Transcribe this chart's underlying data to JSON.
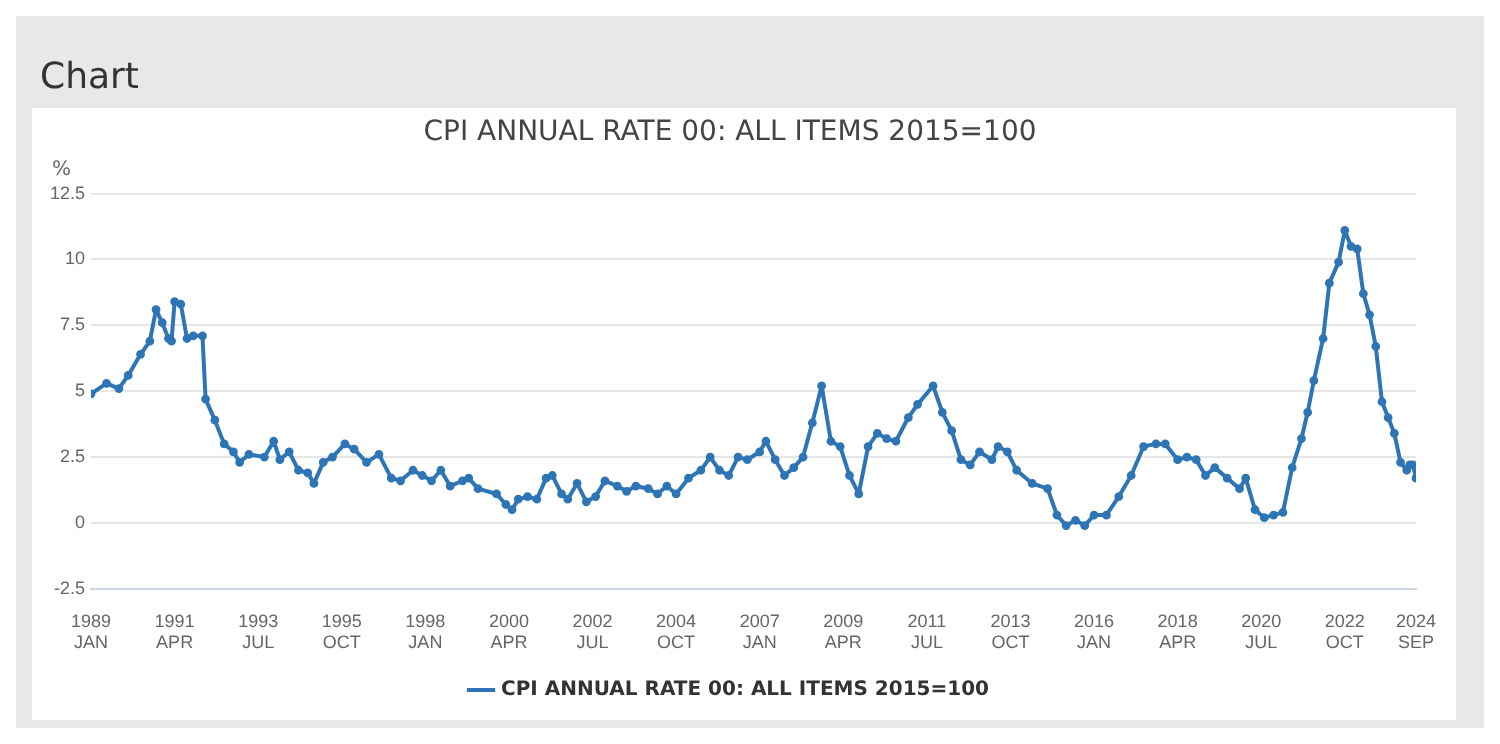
{
  "chart_data": {
    "type": "line",
    "title": "CPI ANNUAL RATE 00: ALL ITEMS 2015=100",
    "ylabel": "%",
    "annotations": [
      "Chart"
    ],
    "x": [
      "1989-01",
      "1989-06",
      "1989-10",
      "1990-01",
      "1990-05",
      "1990-08",
      "1990-10",
      "1990-12",
      "1991-02",
      "1991-03",
      "1991-04",
      "1991-06",
      "1991-08",
      "1991-10",
      "1992-01",
      "1992-02",
      "1992-05",
      "1992-08",
      "1992-11",
      "1993-01",
      "1993-04",
      "1993-09",
      "1993-12",
      "1994-02",
      "1994-05",
      "1994-08",
      "1994-11",
      "1995-01",
      "1995-04",
      "1995-07",
      "1995-11",
      "1996-02",
      "1996-06",
      "1996-10",
      "1997-02",
      "1997-05",
      "1997-09",
      "1997-12",
      "1998-03",
      "1998-06",
      "1998-09",
      "1999-01",
      "1999-03",
      "1999-06",
      "1999-12",
      "2000-03",
      "2000-05",
      "2000-07",
      "2000-10",
      "2001-01",
      "2001-04",
      "2001-06",
      "2001-09",
      "2001-11",
      "2002-02",
      "2002-05",
      "2002-08",
      "2002-11",
      "2003-03",
      "2003-06",
      "2003-09",
      "2004-01",
      "2004-04",
      "2004-07",
      "2004-10",
      "2005-02",
      "2005-06",
      "2005-09",
      "2005-12",
      "2006-03",
      "2006-06",
      "2006-09",
      "2007-01",
      "2007-03",
      "2007-06",
      "2007-09",
      "2007-12",
      "2008-03",
      "2008-06",
      "2008-09",
      "2008-12",
      "2009-03",
      "2009-06",
      "2009-09",
      "2009-12",
      "2010-03",
      "2010-06",
      "2010-09",
      "2011-01",
      "2011-04",
      "2011-09",
      "2011-12",
      "2012-03",
      "2012-06",
      "2012-09",
      "2012-12",
      "2013-04",
      "2013-06",
      "2013-09",
      "2013-12",
      "2014-05",
      "2014-10",
      "2015-01",
      "2015-04",
      "2015-07",
      "2015-10",
      "2016-01",
      "2016-05",
      "2016-09",
      "2017-01",
      "2017-05",
      "2017-09",
      "2017-12",
      "2018-04",
      "2018-07",
      "2018-10",
      "2019-01",
      "2019-04",
      "2019-08",
      "2019-12",
      "2020-02",
      "2020-05",
      "2020-08",
      "2020-11",
      "2021-02",
      "2021-05",
      "2021-08",
      "2021-10",
      "2021-12",
      "2022-03",
      "2022-05",
      "2022-08",
      "2022-10",
      "2022-12",
      "2023-02",
      "2023-04",
      "2023-06",
      "2023-08",
      "2023-10",
      "2023-12",
      "2024-02",
      "2024-04",
      "2024-06",
      "2024-07",
      "2024-08",
      "2024-09"
    ],
    "series": [
      {
        "name": "CPI ANNUAL RATE 00: ALL ITEMS 2015=100",
        "color": "#2e75b6",
        "values": [
          4.9,
          5.3,
          5.1,
          5.6,
          6.4,
          6.9,
          8.1,
          7.6,
          7.0,
          6.9,
          8.4,
          8.3,
          7.0,
          7.1,
          7.1,
          4.7,
          3.9,
          3.0,
          2.7,
          2.3,
          2.6,
          2.5,
          3.1,
          2.4,
          2.7,
          2.0,
          1.9,
          1.5,
          2.3,
          2.5,
          3.0,
          2.8,
          2.3,
          2.6,
          1.7,
          1.6,
          2.0,
          1.8,
          1.6,
          2.0,
          1.4,
          1.6,
          1.7,
          1.3,
          1.1,
          0.7,
          0.5,
          0.9,
          1.0,
          0.9,
          1.7,
          1.8,
          1.1,
          0.9,
          1.5,
          0.8,
          1.0,
          1.6,
          1.4,
          1.2,
          1.4,
          1.3,
          1.1,
          1.4,
          1.1,
          1.7,
          2.0,
          2.5,
          2.0,
          1.8,
          2.5,
          2.4,
          2.7,
          3.1,
          2.4,
          1.8,
          2.1,
          2.5,
          3.8,
          5.2,
          3.1,
          2.9,
          1.8,
          1.1,
          2.9,
          3.4,
          3.2,
          3.1,
          4.0,
          4.5,
          5.2,
          4.2,
          3.5,
          2.4,
          2.2,
          2.7,
          2.4,
          2.9,
          2.7,
          2.0,
          1.5,
          1.3,
          0.3,
          -0.1,
          0.1,
          -0.1,
          0.3,
          0.3,
          1.0,
          1.8,
          2.9,
          3.0,
          3.0,
          2.4,
          2.5,
          2.4,
          1.8,
          2.1,
          1.7,
          1.3,
          1.7,
          0.5,
          0.2,
          0.3,
          0.4,
          2.1,
          3.2,
          4.2,
          5.4,
          7.0,
          9.1,
          9.9,
          11.1,
          10.5,
          10.4,
          8.7,
          7.9,
          6.7,
          4.6,
          4.0,
          3.4,
          2.3,
          2.0,
          2.2,
          2.2,
          1.7
        ]
      }
    ],
    "xlim": [
      "1989-01",
      "2024-09"
    ],
    "xticks": [
      {
        "value": "1989-01",
        "label": "1989 JAN"
      },
      {
        "value": "1991-04",
        "label": "1991 APR"
      },
      {
        "value": "1993-07",
        "label": "1993 JUL"
      },
      {
        "value": "1995-10",
        "label": "1995 OCT"
      },
      {
        "value": "1998-01",
        "label": "1998 JAN"
      },
      {
        "value": "2000-04",
        "label": "2000 APR"
      },
      {
        "value": "2002-07",
        "label": "2002 JUL"
      },
      {
        "value": "2004-10",
        "label": "2004 OCT"
      },
      {
        "value": "2007-01",
        "label": "2007 JAN"
      },
      {
        "value": "2009-04",
        "label": "2009 APR"
      },
      {
        "value": "2011-07",
        "label": "2011 JUL"
      },
      {
        "value": "2013-10",
        "label": "2013 OCT"
      },
      {
        "value": "2016-01",
        "label": "2016 JAN"
      },
      {
        "value": "2018-04",
        "label": "2018 APR"
      },
      {
        "value": "2020-07",
        "label": "2020 JUL"
      },
      {
        "value": "2022-10",
        "label": "2022 OCT"
      },
      {
        "value": "2024-09",
        "label": "2024 SEP"
      }
    ],
    "ylim": [
      -2.5,
      12.5
    ],
    "yticks": [
      -2.5,
      0,
      2.5,
      5,
      7.5,
      10,
      12.5
    ],
    "grid": "y",
    "legend": "bottom",
    "marker": "circle",
    "line_style": "solid"
  }
}
